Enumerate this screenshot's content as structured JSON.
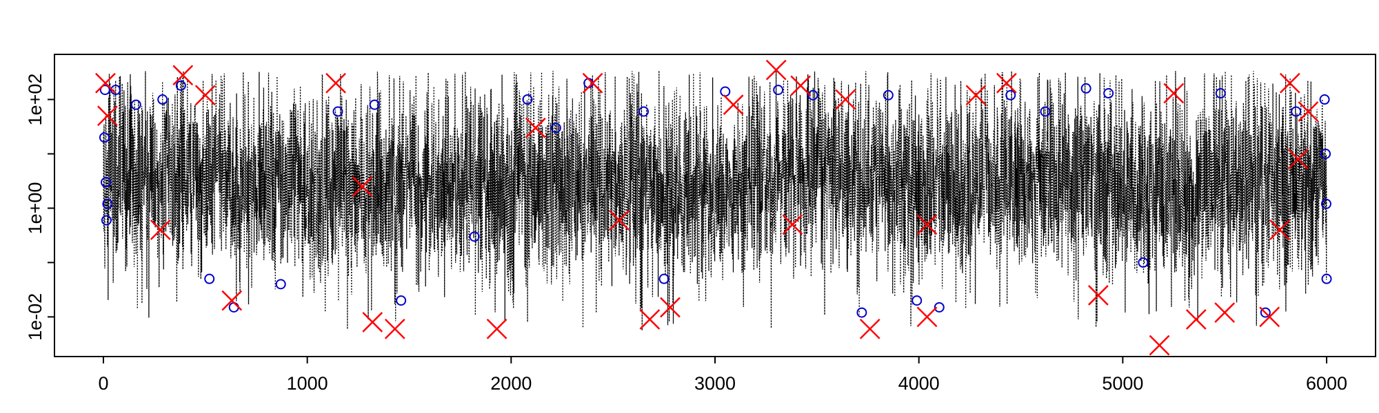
{
  "chart_data": {
    "type": "scatter",
    "title": "",
    "xlabel": "",
    "ylabel": "",
    "x_range": [
      0,
      6000
    ],
    "xlim": [
      -240,
      6240
    ],
    "ylim_log10": [
      -2.73,
      2.83
    ],
    "y_scale": "log",
    "grid": false,
    "legend": "none",
    "x_ticks": [
      {
        "value": 0,
        "label": "0"
      },
      {
        "value": 1000,
        "label": "1000"
      },
      {
        "value": 2000,
        "label": "2000"
      },
      {
        "value": 3000,
        "label": "3000"
      },
      {
        "value": 4000,
        "label": "4000"
      },
      {
        "value": 5000,
        "label": "5000"
      },
      {
        "value": 6000,
        "label": "6000"
      }
    ],
    "y_ticks": [
      {
        "value": 0.01,
        "label": "1e-02",
        "minor": false
      },
      {
        "value": 0.1,
        "label": "",
        "minor": true
      },
      {
        "value": 1,
        "label": "1e+00",
        "minor": false
      },
      {
        "value": 10,
        "label": "",
        "minor": true
      },
      {
        "value": 100,
        "label": "1e+02",
        "minor": false
      }
    ],
    "series": [
      {
        "kind": "dotted-line",
        "color": "#000000",
        "n_points": 6000,
        "center_log10_profile": [
          {
            "x": 0,
            "y": 0.55
          },
          {
            "x": 400,
            "y": 0.75
          },
          {
            "x": 800,
            "y": 0.5
          },
          {
            "x": 1200,
            "y": 0.3
          },
          {
            "x": 1500,
            "y": 0.4
          },
          {
            "x": 2000,
            "y": 0.45
          },
          {
            "x": 2500,
            "y": 0.5
          },
          {
            "x": 2900,
            "y": 0.25
          },
          {
            "x": 3300,
            "y": 0.6
          },
          {
            "x": 3600,
            "y": 0.8
          },
          {
            "x": 4000,
            "y": 0.4
          },
          {
            "x": 4500,
            "y": 0.55
          },
          {
            "x": 5000,
            "y": 0.5
          },
          {
            "x": 5200,
            "y": 0.2
          },
          {
            "x": 5500,
            "y": 0.45
          },
          {
            "x": 6000,
            "y": 0.45
          }
        ],
        "spread_log10": 0.9
      },
      {
        "kind": "points",
        "marker": "circle",
        "color": "#0000cc",
        "points": [
          {
            "x": 5,
            "y": 20
          },
          {
            "x": 8,
            "y": 150
          },
          {
            "x": 12,
            "y": 3
          },
          {
            "x": 15,
            "y": 0.6
          },
          {
            "x": 20,
            "y": 1.2
          },
          {
            "x": 60,
            "y": 150
          },
          {
            "x": 160,
            "y": 80
          },
          {
            "x": 290,
            "y": 100
          },
          {
            "x": 380,
            "y": 180
          },
          {
            "x": 520,
            "y": 0.05
          },
          {
            "x": 640,
            "y": 0.015
          },
          {
            "x": 870,
            "y": 0.04
          },
          {
            "x": 1150,
            "y": 60
          },
          {
            "x": 1330,
            "y": 80
          },
          {
            "x": 1460,
            "y": 0.02
          },
          {
            "x": 1820,
            "y": 0.3
          },
          {
            "x": 2080,
            "y": 100
          },
          {
            "x": 2220,
            "y": 30
          },
          {
            "x": 2380,
            "y": 200
          },
          {
            "x": 2650,
            "y": 60
          },
          {
            "x": 2750,
            "y": 0.05
          },
          {
            "x": 3050,
            "y": 140
          },
          {
            "x": 3310,
            "y": 150
          },
          {
            "x": 3480,
            "y": 120
          },
          {
            "x": 3720,
            "y": 0.012
          },
          {
            "x": 3850,
            "y": 120
          },
          {
            "x": 3990,
            "y": 0.02
          },
          {
            "x": 4100,
            "y": 0.015
          },
          {
            "x": 4450,
            "y": 120
          },
          {
            "x": 4620,
            "y": 60
          },
          {
            "x": 4820,
            "y": 160
          },
          {
            "x": 4930,
            "y": 130
          },
          {
            "x": 5100,
            "y": 0.1
          },
          {
            "x": 5480,
            "y": 130
          },
          {
            "x": 5700,
            "y": 0.012
          },
          {
            "x": 5850,
            "y": 60
          },
          {
            "x": 5990,
            "y": 100
          },
          {
            "x": 5995,
            "y": 10
          },
          {
            "x": 5998,
            "y": 1.2
          },
          {
            "x": 6000,
            "y": 0.05
          }
        ]
      },
      {
        "kind": "points",
        "marker": "x",
        "color": "#ff0000",
        "points": [
          {
            "x": 10,
            "y": 200
          },
          {
            "x": 20,
            "y": 50
          },
          {
            "x": 390,
            "y": 280
          },
          {
            "x": 500,
            "y": 120
          },
          {
            "x": 630,
            "y": 0.02
          },
          {
            "x": 1140,
            "y": 200
          },
          {
            "x": 1320,
            "y": 0.008
          },
          {
            "x": 1430,
            "y": 0.006
          },
          {
            "x": 1930,
            "y": 0.006
          },
          {
            "x": 2120,
            "y": 30
          },
          {
            "x": 2400,
            "y": 200
          },
          {
            "x": 2680,
            "y": 0.009
          },
          {
            "x": 2780,
            "y": 0.015
          },
          {
            "x": 3090,
            "y": 80
          },
          {
            "x": 3300,
            "y": 350
          },
          {
            "x": 3420,
            "y": 180
          },
          {
            "x": 3640,
            "y": 100
          },
          {
            "x": 3760,
            "y": 0.006
          },
          {
            "x": 4040,
            "y": 0.01
          },
          {
            "x": 4280,
            "y": 120
          },
          {
            "x": 4430,
            "y": 200
          },
          {
            "x": 4880,
            "y": 0.025
          },
          {
            "x": 5180,
            "y": 0.003
          },
          {
            "x": 5250,
            "y": 130
          },
          {
            "x": 5360,
            "y": 0.009
          },
          {
            "x": 5500,
            "y": 0.012
          },
          {
            "x": 5720,
            "y": 0.01
          },
          {
            "x": 5820,
            "y": 200
          },
          {
            "x": 5910,
            "y": 60
          },
          {
            "x": 280,
            "y": 0.4
          },
          {
            "x": 1270,
            "y": 2.5
          },
          {
            "x": 2530,
            "y": 0.6
          },
          {
            "x": 3380,
            "y": 0.5
          },
          {
            "x": 4040,
            "y": 0.5
          },
          {
            "x": 5770,
            "y": 0.4
          },
          {
            "x": 5860,
            "y": 8
          }
        ]
      }
    ]
  }
}
